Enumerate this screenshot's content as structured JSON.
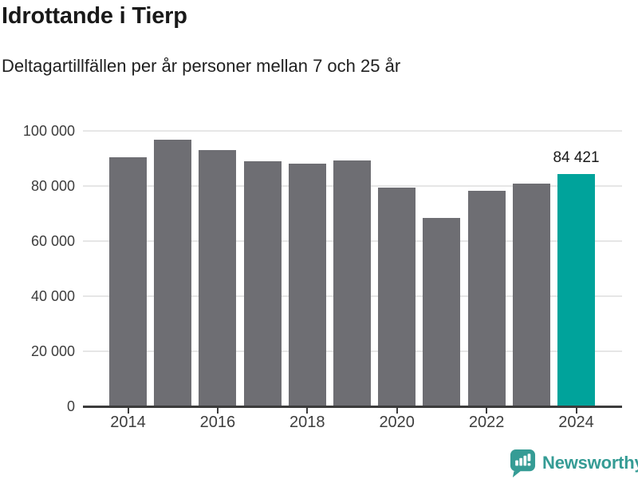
{
  "chart_data": {
    "type": "bar",
    "title": "Idrottande i Tierp",
    "subtitle": "Deltagartillfällen per år personer mellan 7 och 25 år",
    "categories": [
      2014,
      2015,
      2016,
      2017,
      2018,
      2019,
      2020,
      2021,
      2022,
      2023,
      2024
    ],
    "values": [
      90300,
      96800,
      93100,
      89000,
      88200,
      89200,
      79400,
      68500,
      78400,
      81000,
      84421
    ],
    "highlight_index": 10,
    "highlight_value_label": "84 421",
    "xlabel": "",
    "ylabel": "",
    "ylim": [
      0,
      100000
    ],
    "yticks": [
      {
        "value": 0,
        "label": "0"
      },
      {
        "value": 20000,
        "label": "20 000"
      },
      {
        "value": 40000,
        "label": "40 000"
      },
      {
        "value": 60000,
        "label": "60 000"
      },
      {
        "value": 80000,
        "label": "80 000"
      },
      {
        "value": 100000,
        "label": "100 000"
      }
    ],
    "xtick_labels": [
      "2014",
      "2016",
      "2018",
      "2020",
      "2022",
      "2024"
    ],
    "grid": true,
    "legend": false,
    "colors": {
      "bar": "#6e6e73",
      "highlight": "#00a39b",
      "axis": "#3c3c3c",
      "gridline": "#e6e6e6",
      "tick_text": "#3d3d3d",
      "title_text": "#191919"
    }
  },
  "footer": {
    "brand": "Newsworthy",
    "brand_color": "#359c95",
    "logo_icon": "bar-chart-speech-bubble-icon"
  }
}
